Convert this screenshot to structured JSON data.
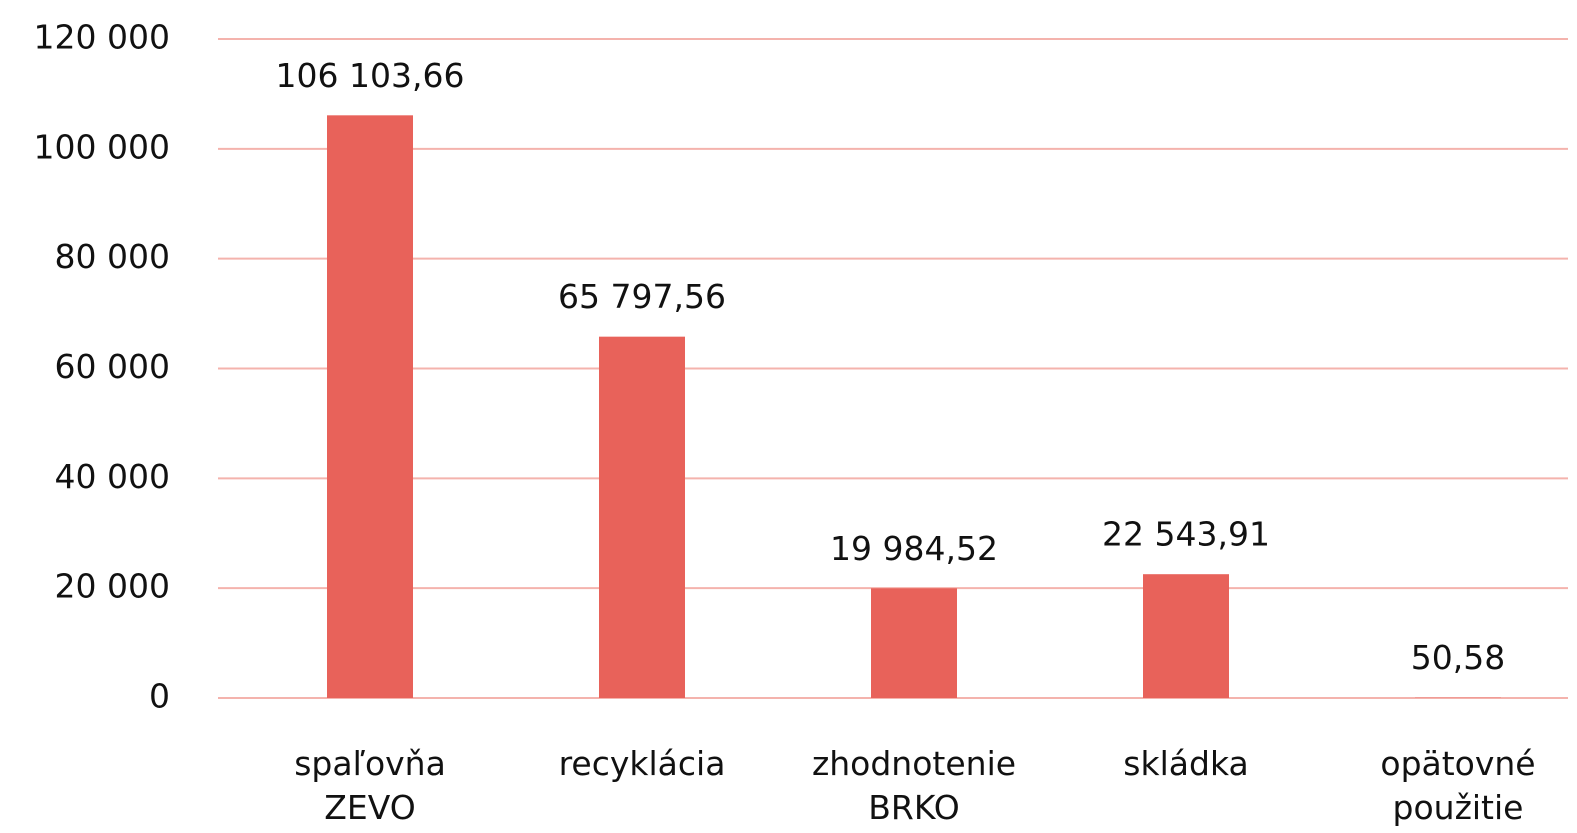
{
  "chart_data": {
    "type": "bar",
    "categories": [
      "spaľovňa ZEVO",
      "recyklácia",
      "zhodnotenie BRKO",
      "skládka",
      "opätovné použitie"
    ],
    "values": [
      106103.66,
      65797.56,
      19984.52,
      22543.91,
      50.58
    ],
    "value_labels": [
      "106 103,66",
      "65 797,56",
      "19 984,52",
      "22 543,91",
      "50,58"
    ],
    "color": "#e8625a",
    "ylim": [
      0,
      120000
    ],
    "yticks": [
      0,
      {
        "value": 20000,
        "label": "20 000"
      },
      {
        "value": 40000,
        "label": "40 000"
      },
      {
        "value": 60000,
        "label": "60 000"
      },
      {
        "value": 80000,
        "label": "80 000"
      },
      {
        "value": 100000,
        "label": "100 000"
      },
      {
        "value": 120000,
        "label": "120 000"
      }
    ],
    "grid": true
  }
}
